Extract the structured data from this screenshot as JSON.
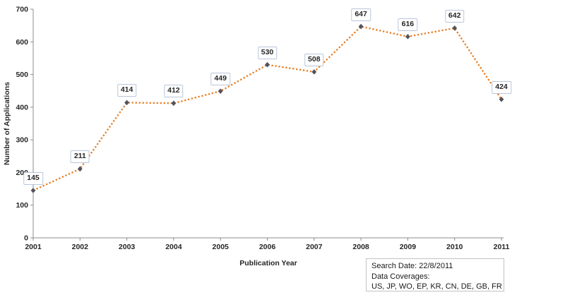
{
  "chart_data": {
    "type": "line",
    "categories": [
      "2001",
      "2002",
      "2003",
      "2004",
      "2005",
      "2006",
      "2007",
      "2008",
      "2009",
      "2010",
      "2011"
    ],
    "values": [
      145,
      211,
      414,
      412,
      449,
      530,
      508,
      647,
      616,
      642,
      424
    ],
    "xlabel": "Publication Year",
    "ylabel": "Number of Applications",
    "ylim": [
      0,
      700
    ],
    "yticks": [
      0,
      100,
      200,
      300,
      400,
      500,
      600,
      700
    ],
    "grid": false,
    "legend_position": "none",
    "line_style": "dotted",
    "marker": "diamond",
    "data_labels": true
  },
  "colors": {
    "line": "#E87E22",
    "marker": "#52525C",
    "axis": "#8C8C8C",
    "text": "#262626",
    "label_box_border": "#B9C6DB",
    "label_box_bg": "#FFFFFF",
    "info_box_border": "#C3C3C3"
  },
  "info_box": {
    "line1": "Search Date: 22/8/2011",
    "line2": "Data Coverages:",
    "line3": "US, JP, WO, EP, KR, CN, DE, GB, FR"
  }
}
